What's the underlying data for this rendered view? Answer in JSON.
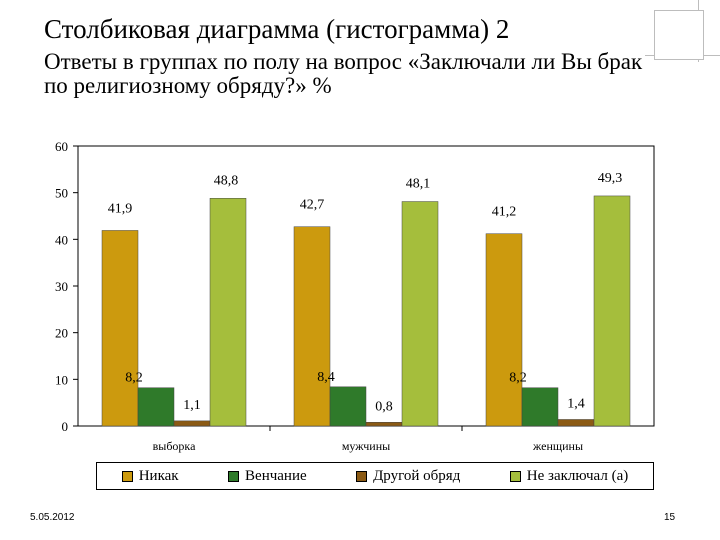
{
  "slide": {
    "title": "Столбиковая диаграмма (гистограмма) 2",
    "subtitle": "Ответы в группах по полу на вопрос «Заключали ли Вы брак по религиозному обряду?» %",
    "date": "5.05.2012",
    "page_number": "15"
  },
  "colors": {
    "nikak": "#cc9a0e",
    "venchanie": "#2f7a2a",
    "drugoy": "#8b5a14",
    "ne_zaklyuchal": "#a5be3c"
  },
  "chart_data": {
    "type": "bar",
    "categories": [
      "выборка",
      "мужчины",
      "женщины"
    ],
    "series": [
      {
        "name": "Никак",
        "values": [
          41.9,
          42.7,
          41.2
        ],
        "labels": [
          "41,9",
          "42,7",
          "41,2"
        ]
      },
      {
        "name": "Венчание",
        "values": [
          8.2,
          8.4,
          8.2
        ],
        "labels": [
          "8,2",
          "8,4",
          "8,2"
        ]
      },
      {
        "name": "Другой обряд",
        "values": [
          1.1,
          0.8,
          1.4
        ],
        "labels": [
          "1,1",
          "0,8",
          "1,4"
        ]
      },
      {
        "name": "Не заключал (а)",
        "values": [
          48.8,
          48.1,
          49.3
        ],
        "labels": [
          "48,8",
          "48,1",
          "49,3"
        ]
      }
    ],
    "ylim": [
      0,
      60
    ],
    "yticks": [
      0,
      10,
      20,
      30,
      40,
      50,
      60
    ],
    "grid": false,
    "legend": "bottom"
  }
}
